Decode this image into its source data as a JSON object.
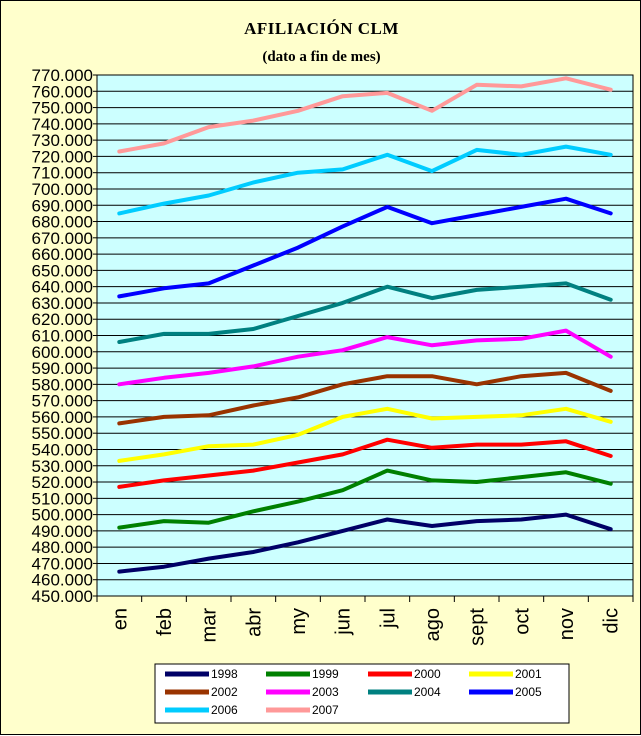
{
  "chart_data": {
    "type": "line",
    "title": "AFILIACIÓN  CLM",
    "subtitle": "(dato a fin de mes)",
    "xlabel": "",
    "ylabel": "",
    "categories": [
      "en",
      "feb",
      "mar",
      "abr",
      "my",
      "jun",
      "jul",
      "ago",
      "sept",
      "oct",
      "nov",
      "dic"
    ],
    "ylim": [
      450000,
      770000
    ],
    "ytick_step": 10000,
    "ytick_labels": [
      "450.000",
      "460.000",
      "470.000",
      "480.000",
      "490.000",
      "500.000",
      "510.000",
      "520.000",
      "530.000",
      "540.000",
      "550.000",
      "560.000",
      "570.000",
      "580.000",
      "590.000",
      "600.000",
      "610.000",
      "620.000",
      "630.000",
      "640.000",
      "650.000",
      "660.000",
      "670.000",
      "680.000",
      "690.000",
      "700.000",
      "710.000",
      "720.000",
      "730.000",
      "740.000",
      "750.000",
      "760.000",
      "770.000"
    ],
    "grid": true,
    "plot_background": "#ccffff",
    "legend_position": "bottom",
    "series": [
      {
        "name": "1998",
        "color": "#000066",
        "values": [
          465000,
          468000,
          473000,
          477000,
          483000,
          490000,
          497000,
          493000,
          496000,
          497000,
          500000,
          491000
        ]
      },
      {
        "name": "1999",
        "color": "#008000",
        "values": [
          492000,
          496000,
          495000,
          502000,
          508000,
          515000,
          527000,
          521000,
          520000,
          523000,
          526000,
          519000
        ]
      },
      {
        "name": "2000",
        "color": "#ff0000",
        "values": [
          517000,
          521000,
          524000,
          527000,
          532000,
          537000,
          546000,
          541000,
          543000,
          543000,
          545000,
          536000
        ]
      },
      {
        "name": "2001",
        "color": "#ffff00",
        "values": [
          533000,
          537000,
          542000,
          543000,
          549000,
          560000,
          565000,
          559000,
          560000,
          561000,
          565000,
          557000
        ]
      },
      {
        "name": "2002",
        "color": "#993300",
        "values": [
          556000,
          560000,
          561000,
          567000,
          572000,
          580000,
          585000,
          585000,
          580000,
          585000,
          587000,
          576000
        ]
      },
      {
        "name": "2003",
        "color": "#ff00ff",
        "values": [
          580000,
          584000,
          587000,
          591000,
          597000,
          601000,
          609000,
          604000,
          607000,
          608000,
          613000,
          597000
        ]
      },
      {
        "name": "2004",
        "color": "#008080",
        "values": [
          606000,
          611000,
          611000,
          614000,
          622000,
          630000,
          640000,
          633000,
          638000,
          640000,
          642000,
          632000
        ]
      },
      {
        "name": "2005",
        "color": "#0000ff",
        "values": [
          634000,
          639000,
          642000,
          653000,
          664000,
          677000,
          689000,
          679000,
          684000,
          689000,
          694000,
          685000
        ]
      },
      {
        "name": "2006",
        "color": "#00ccff",
        "values": [
          685000,
          691000,
          696000,
          704000,
          710000,
          712000,
          721000,
          711000,
          724000,
          721000,
          726000,
          721000
        ]
      },
      {
        "name": "2007",
        "color": "#ff9999",
        "values": [
          723000,
          728000,
          738000,
          742000,
          748000,
          757000,
          759000,
          748000,
          764000,
          763000,
          768000,
          761000
        ]
      }
    ]
  }
}
